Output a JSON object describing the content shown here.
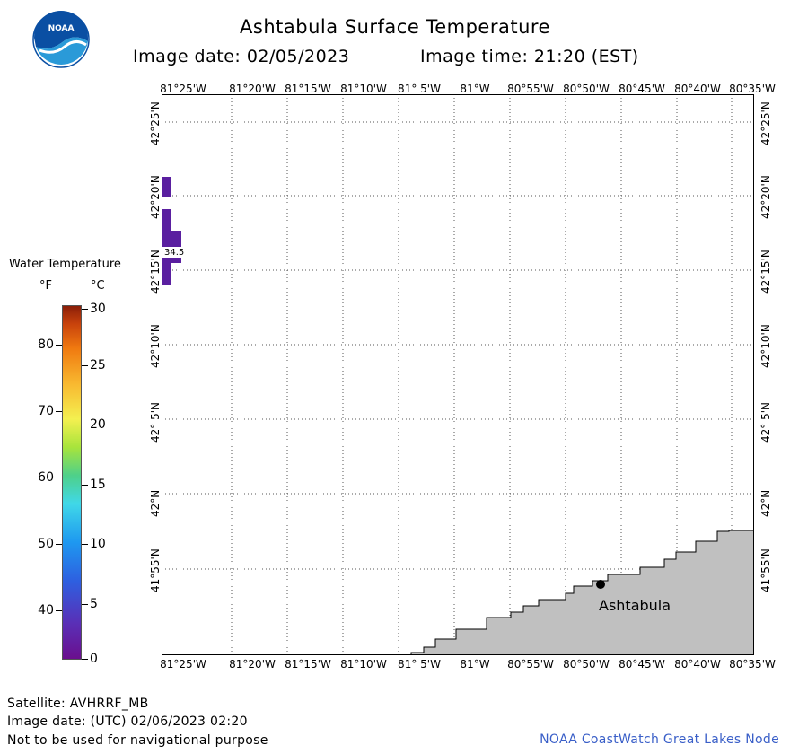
{
  "header": {
    "title": "Ashtabula Surface Temperature",
    "image_date": "Image date: 02/05/2023",
    "image_time": "Image time: 21:20 (EST)"
  },
  "logo": {
    "icon": "noaa-logo-icon",
    "text": "NOAA",
    "colors": {
      "sky": "#0a4fa3",
      "wave": "#2a9ad8"
    }
  },
  "map": {
    "longitude_labels": [
      "81°25'W",
      "81°20'W",
      "81°15'W",
      "81°10'W",
      "81° 5'W",
      "81°W",
      "80°55'W",
      "80°50'W",
      "80°45'W",
      "80°40'W",
      "80°35'W"
    ],
    "latitude_labels": [
      "42°25'N",
      "42°20'N",
      "42°15'N",
      "42°10'N",
      "42° 5'N",
      "42°N",
      "41°55'N"
    ],
    "place_label": "Ashtabula",
    "value_label": "34.5",
    "colors": {
      "land": "#c0c0c0",
      "water_pixel": "#5a1fa0",
      "grid": "#555555",
      "city_dot": "#000000"
    }
  },
  "legend": {
    "title": "Water Temperature",
    "unit_f": "°F",
    "unit_c": "°C",
    "f_ticks": [
      "80",
      "70",
      "60",
      "50",
      "40"
    ],
    "c_ticks": [
      "30",
      "25",
      "20",
      "15",
      "10",
      "5",
      "0"
    ]
  },
  "footer": {
    "satellite": "Satellite: AVHRRF_MB",
    "utc_date": "Image date: (UTC) 02/06/2023  02:20",
    "note": "Not to be used for navigational purpose",
    "credit": "NOAA CoastWatch Great Lakes Node"
  }
}
